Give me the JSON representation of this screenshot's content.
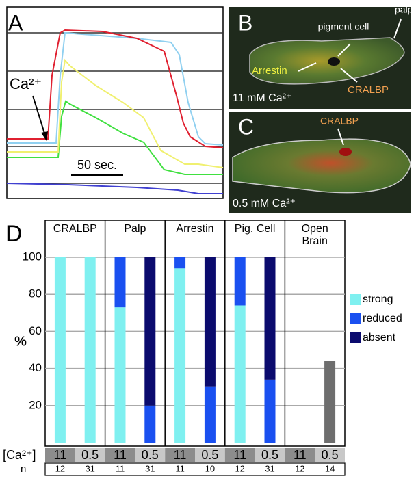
{
  "panel_a": {
    "label": "A",
    "stimulus": "Ca²⁺",
    "scale_bar": "50 sec."
  },
  "panel_b": {
    "label": "B",
    "palp": "palp",
    "pigment_cell": "pigment cell",
    "arrestin": "Arrestin",
    "cralbp": "CRALBP",
    "condition": "11 mM Ca²⁺"
  },
  "panel_c": {
    "label": "C",
    "cralbp": "CRALBP",
    "condition": "0.5 mM Ca²⁺"
  },
  "chart_data": {
    "type": "bar",
    "stacked": true,
    "panel_label": "D",
    "ylabel": "%",
    "ylim": [
      0,
      100
    ],
    "yticks": [
      20,
      40,
      60,
      80,
      100
    ],
    "grid": true,
    "groups": [
      "CRALBP",
      "Palp",
      "Arrestin",
      "Pig. Cell",
      "Open Brain"
    ],
    "conc_label": "[Ca²⁺]",
    "n_label": "n",
    "categories": [
      "11",
      "0.5",
      "11",
      "0.5",
      "11",
      "0.5",
      "11",
      "0.5",
      "11",
      "0.5"
    ],
    "n": [
      12,
      31,
      11,
      31,
      11,
      10,
      12,
      31,
      12,
      14
    ],
    "series": [
      {
        "name": "strong",
        "color": "#7ff0f0",
        "values": [
          100,
          100,
          73,
          0,
          94,
          0,
          74,
          0,
          null,
          null
        ]
      },
      {
        "name": "reduced",
        "color": "#1a50f0",
        "values": [
          0,
          0,
          27,
          20,
          6,
          30,
          26,
          34,
          null,
          null
        ]
      },
      {
        "name": "absent",
        "color": "#0b0b6e",
        "values": [
          0,
          0,
          0,
          80,
          0,
          70,
          0,
          66,
          null,
          null
        ]
      },
      {
        "color": "#6e6e6e",
        "values": [
          null,
          null,
          null,
          null,
          null,
          null,
          null,
          null,
          0,
          44
        ]
      }
    ]
  }
}
